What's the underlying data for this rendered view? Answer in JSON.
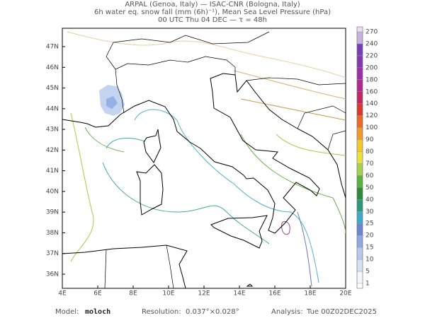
{
  "header": {
    "lines": [
      "ARPAL (Genoa, Italy)  —  ISAC-CNR (Bologna, Italy)",
      "6h water eq. snow fall (mm (6h)⁻¹), Mean Sea Level Pressure (hPa)",
      "00 UTC Thu 04 DEC  —  τ = 48h"
    ]
  },
  "map": {
    "lon_ticks": [
      {
        "value": 4,
        "label": "4E"
      },
      {
        "value": 6,
        "label": "6E"
      },
      {
        "value": 8,
        "label": "8E"
      },
      {
        "value": 10,
        "label": "10E"
      },
      {
        "value": 12,
        "label": "12E"
      },
      {
        "value": 14,
        "label": "14E"
      },
      {
        "value": 16,
        "label": "16E"
      },
      {
        "value": 18,
        "label": "18E"
      },
      {
        "value": 20,
        "label": "20E"
      }
    ],
    "lat_ticks": [
      {
        "value": 36,
        "label": "36N"
      },
      {
        "value": 37,
        "label": "37N"
      },
      {
        "value": 38,
        "label": "38N"
      },
      {
        "value": 39,
        "label": "39N"
      },
      {
        "value": 40,
        "label": "40N"
      },
      {
        "value": 41,
        "label": "41N"
      },
      {
        "value": 42,
        "label": "42N"
      },
      {
        "value": 43,
        "label": "43N"
      },
      {
        "value": 44,
        "label": "44N"
      },
      {
        "value": 45,
        "label": "45N"
      },
      {
        "value": 46,
        "label": "46N"
      },
      {
        "value": 47,
        "label": "47N"
      }
    ]
  },
  "colorbar": {
    "levels": [
      1,
      5,
      10,
      15,
      20,
      25,
      30,
      40,
      50,
      60,
      70,
      80,
      90,
      100,
      120,
      140,
      160,
      180,
      200,
      220,
      240,
      270
    ],
    "colors": [
      "#f4f6fc",
      "#d6e0f4",
      "#b6c8ec",
      "#8ea8e0",
      "#6a86d0",
      "#40a8c8",
      "#2a9a7a",
      "#2e8a3a",
      "#5cb040",
      "#a6d050",
      "#e8e040",
      "#f0c830",
      "#f09a30",
      "#e86a28",
      "#d83a30",
      "#c02860",
      "#b02a90",
      "#9a30a8",
      "#8438b0",
      "#7840b8",
      "#c8b0e0",
      "#e8e0f0"
    ]
  },
  "footer": {
    "model_label": "Model:",
    "model": "moloch",
    "resolution_label": "Resolution:",
    "resolution": "0.037°×0.028°",
    "analysis_label": "Analysis:",
    "analysis": "Tue 00Z02DEC2025"
  }
}
